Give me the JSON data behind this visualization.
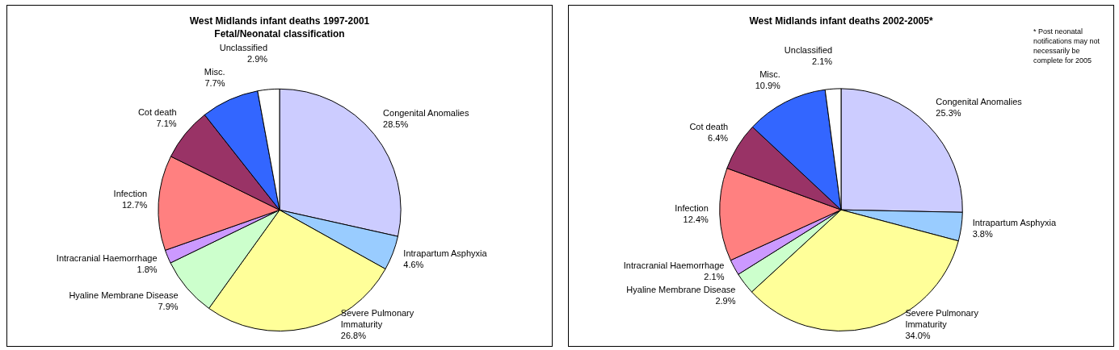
{
  "chart_data": [
    {
      "type": "pie",
      "title": "West Midlands infant deaths 1997-2001",
      "subtitle": "Fetal/Neonatal classification",
      "categories": [
        "Congenital Anomalies",
        "Intrapartum Asphyxia",
        "Severe Pulmonary Immaturity",
        "Hyaline Membrane Disease",
        "Intracranial Haemorrhage",
        "Infection",
        "Cot death",
        "Misc.",
        "Unclassified"
      ],
      "values": [
        28.5,
        4.6,
        26.8,
        7.9,
        1.8,
        12.7,
        7.1,
        7.7,
        2.9
      ],
      "value_labels": [
        "28.5%",
        "4.6%",
        "26.8%",
        "7.9%",
        "1.8%",
        "12.7%",
        "7.1%",
        "7.7%",
        "2.9%"
      ],
      "colors": [
        "#ccccff",
        "#99ccff",
        "#ffff99",
        "#ccffcc",
        "#cc99ff",
        "#ff8080",
        "#993366",
        "#3366ff",
        "#ffffff"
      ],
      "legend": false
    },
    {
      "type": "pie",
      "title": "West Midlands infant deaths 2002-2005*",
      "categories": [
        "Congenital Anomalies",
        "Intrapartum Asphyxia",
        "Severe Pulmonary Immaturity",
        "Hyaline Membrane Disease",
        "Intracranial Haemorrhage",
        "Infection",
        "Cot death",
        "Misc.",
        "Unclassified"
      ],
      "values": [
        25.3,
        3.8,
        34.0,
        2.9,
        2.1,
        12.4,
        6.4,
        10.9,
        2.1
      ],
      "value_labels": [
        "25.3%",
        "3.8%",
        "34.0%",
        "2.9%",
        "2.1%",
        "12.4%",
        "6.4%",
        "10.9%",
        "2.1%"
      ],
      "colors": [
        "#ccccff",
        "#99ccff",
        "#ffff99",
        "#ccffcc",
        "#cc99ff",
        "#ff8080",
        "#993366",
        "#3366ff",
        "#ffffff"
      ],
      "legend": false,
      "annotations": [
        "* Post neonatal notifications may not necessarily be complete for 2005"
      ]
    }
  ]
}
